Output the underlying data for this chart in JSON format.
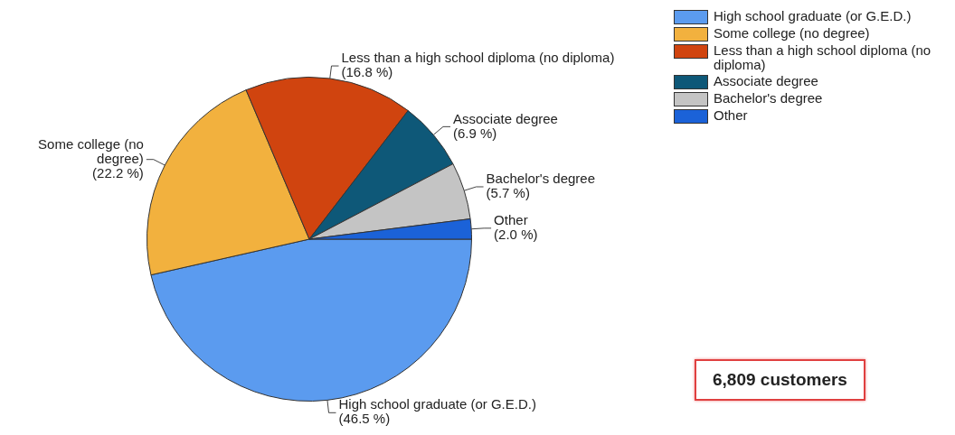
{
  "chart_data": {
    "type": "pie",
    "categories": [
      "High school graduate (or G.E.D.)",
      "Some college (no degree)",
      "Less than a high school diploma (no diploma)",
      "Associate degree",
      "Bachelor's degree",
      "Other"
    ],
    "values": [
      46.5,
      22.2,
      16.8,
      6.9,
      5.7,
      2.0
    ],
    "value_labels": [
      "(46.5 %)",
      "(22.2 %)",
      "(16.8 %)",
      "(6.9 %)",
      "(5.7 %)",
      "(2.0 %)"
    ],
    "colors": [
      "#5b9bef",
      "#f2b13e",
      "#d0440f",
      "#0e5878",
      "#c4c4c4",
      "#1b62d8"
    ],
    "legend": "top right",
    "annotations": [
      "6,809 customers"
    ]
  }
}
